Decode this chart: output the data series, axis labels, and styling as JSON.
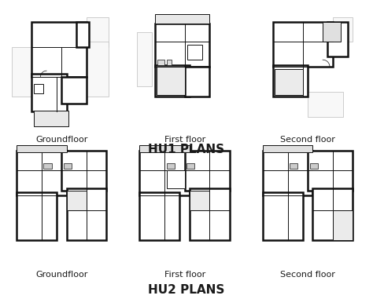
{
  "background_color": "#ffffff",
  "title1": "HU1 PLANS",
  "title2": "HU2 PLANS",
  "title_fontsize": 11,
  "label_fontsize": 8,
  "floor_labels": [
    "Groundfloor",
    "First floor",
    "Second floor"
  ],
  "text_color": "#1a1a1a",
  "lw_outer": 1.8,
  "lw_inner": 0.7,
  "lw_ghost": 0.5
}
